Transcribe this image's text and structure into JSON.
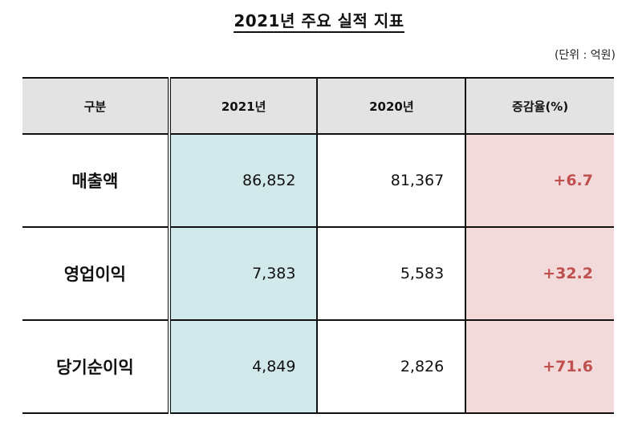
{
  "document": {
    "title": "2021년 주요 실적 지표",
    "unit_note": "(단위 : 억원)"
  },
  "table": {
    "headers": [
      "구분",
      "2021년",
      "2020년",
      "증감율(%)"
    ],
    "rows": [
      {
        "label": "매출액",
        "y2021": "86,852",
        "y2020": "81,367",
        "change": "+6.7"
      },
      {
        "label": "영업이익",
        "y2021": "7,383",
        "y2020": "5,583",
        "change": "+32.2"
      },
      {
        "label": "당기순이익",
        "y2021": "4,849",
        "y2020": "2,826",
        "change": "+71.6"
      }
    ]
  },
  "colors": {
    "header_bg": "#e3e3e3",
    "col_2021_bg": "#d2e9ec",
    "col_change_bg": "#f2dadb",
    "change_text": "#c0504d",
    "border": "#111111"
  }
}
